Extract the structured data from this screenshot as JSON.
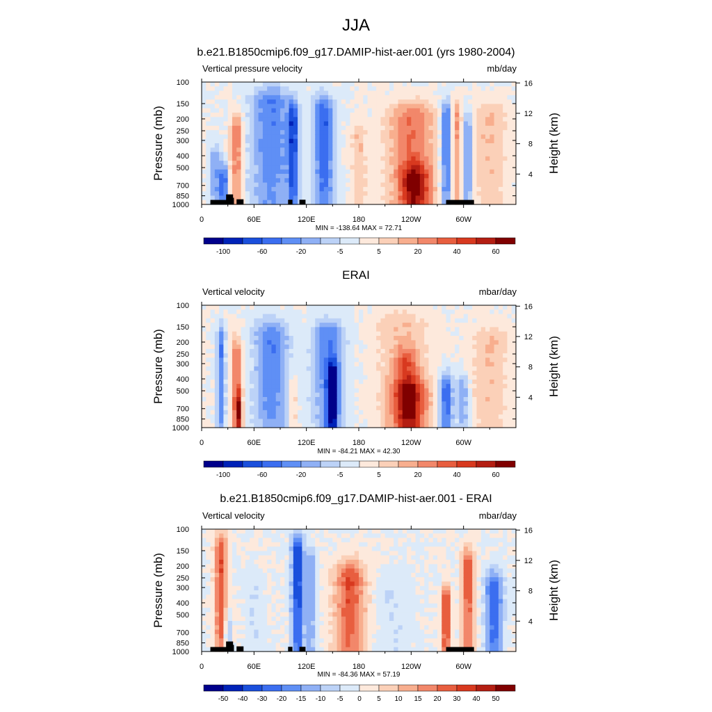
{
  "figure_title": "JJA",
  "chart_data": [
    {
      "type": "heatmap",
      "title": "b.e21.B1850cmip6.f09_g17.DAMIP-hist-aer.001 (yrs 1980-2004)",
      "left_label": "Vertical pressure velocity",
      "units": "mb/day",
      "xlabel": "",
      "ylabel": "Pressure (mb)",
      "y2label": "Height (km)",
      "x_ticks": [
        "0",
        "60E",
        "120E",
        "180",
        "120W",
        "60W"
      ],
      "y_ticks": [
        "100",
        "150",
        "200",
        "250",
        "300",
        "400",
        "500",
        "700",
        "850",
        "1000"
      ],
      "y2_ticks": [
        "4",
        "8",
        "12",
        "16"
      ],
      "stats": "MIN = -138.64  MAX =  72.71",
      "colorbar_labels": [
        "-100",
        "-60",
        "-20",
        "-5",
        "5",
        "20",
        "40",
        "60"
      ],
      "min": -138.64,
      "max": 72.71,
      "ylim": [
        1000,
        100
      ],
      "features": [
        {
          "lon": 15,
          "p_top": 450,
          "halfwidth": 6,
          "level": -3
        },
        {
          "lon": 25,
          "p_top": 650,
          "halfwidth": 5,
          "level": -5
        },
        {
          "lon": 40,
          "p_top": 250,
          "halfwidth": 7,
          "level": 4
        },
        {
          "lon": 80,
          "p_top": 150,
          "halfwidth": 24,
          "level": -4
        },
        {
          "lon": 105,
          "p_top": 200,
          "halfwidth": 6,
          "level": -5
        },
        {
          "lon": 140,
          "p_top": 180,
          "halfwidth": 12,
          "level": -5
        },
        {
          "lon": 180,
          "p_top": 300,
          "halfwidth": 8,
          "level": 2
        },
        {
          "lon": 240,
          "p_top": 200,
          "halfwidth": 28,
          "level": 4
        },
        {
          "lon": 245,
          "p_top": 650,
          "halfwidth": 16,
          "level": 5
        },
        {
          "lon": 280,
          "p_top": 200,
          "halfwidth": 6,
          "level": -5
        },
        {
          "lon": 292,
          "p_top": 200,
          "halfwidth": 5,
          "level": 3
        },
        {
          "lon": 305,
          "p_top": 250,
          "halfwidth": 5,
          "level": -4
        },
        {
          "lon": 330,
          "p_top": 200,
          "halfwidth": 20,
          "level": 2
        }
      ]
    },
    {
      "type": "heatmap",
      "title": "ERAI",
      "left_label": "Vertical velocity",
      "units": "mbar/day",
      "xlabel": "",
      "ylabel": "Pressure (mb)",
      "y2label": "Height (km)",
      "x_ticks": [
        "0",
        "60E",
        "120E",
        "180",
        "120W",
        "60W"
      ],
      "y_ticks": [
        "100",
        "150",
        "200",
        "250",
        "300",
        "400",
        "500",
        "700",
        "850",
        "1000"
      ],
      "y2_ticks": [
        "4",
        "8",
        "12",
        "16"
      ],
      "stats": "MIN = -84.21  MAX =  42.30",
      "colorbar_labels": [
        "-100",
        "-60",
        "-20",
        "-5",
        "5",
        "20",
        "40",
        "60"
      ],
      "min": -84.21,
      "max": 42.3,
      "ylim": [
        1000,
        100
      ],
      "features": [
        {
          "lon": 22,
          "p_top": 200,
          "halfwidth": 5,
          "level": -4
        },
        {
          "lon": 40,
          "p_top": 250,
          "halfwidth": 6,
          "level": 4
        },
        {
          "lon": 42,
          "p_top": 700,
          "halfwidth": 4,
          "level": 5
        },
        {
          "lon": 80,
          "p_top": 180,
          "halfwidth": 20,
          "level": -4
        },
        {
          "lon": 105,
          "p_top": 500,
          "halfwidth": 5,
          "level": 2
        },
        {
          "lon": 145,
          "p_top": 180,
          "halfwidth": 18,
          "level": -4
        },
        {
          "lon": 150,
          "p_top": 400,
          "halfwidth": 6,
          "level": -6
        },
        {
          "lon": 230,
          "p_top": 150,
          "halfwidth": 30,
          "level": 2
        },
        {
          "lon": 235,
          "p_top": 300,
          "halfwidth": 14,
          "level": 3
        },
        {
          "lon": 240,
          "p_top": 550,
          "halfwidth": 22,
          "level": 4
        },
        {
          "lon": 280,
          "p_top": 500,
          "halfwidth": 8,
          "level": -5
        },
        {
          "lon": 300,
          "p_top": 500,
          "halfwidth": 7,
          "level": -3
        },
        {
          "lon": 330,
          "p_top": 200,
          "halfwidth": 22,
          "level": 2
        }
      ]
    },
    {
      "type": "heatmap",
      "title": "b.e21.B1850cmip6.f09_g17.DAMIP-hist-aer.001 - ERAI",
      "left_label": "Vertical velocity",
      "units": "mbar/day",
      "xlabel": "",
      "ylabel": "Pressure (mb)",
      "y2label": "Height (km)",
      "x_ticks": [
        "0",
        "60E",
        "120E",
        "180",
        "120W",
        "60W"
      ],
      "y_ticks": [
        "100",
        "150",
        "200",
        "250",
        "300",
        "400",
        "500",
        "700",
        "850",
        "1000"
      ],
      "y2_ticks": [
        "4",
        "8",
        "12",
        "16"
      ],
      "stats": "MIN = -84.36  MAX =  57.19",
      "colorbar_labels": [
        "-50",
        "-40",
        "-30",
        "-20",
        "-15",
        "-10",
        "-5",
        "0",
        "5",
        "10",
        "15",
        "20",
        "30",
        "40",
        "50"
      ],
      "min": -84.36,
      "max": 57.19,
      "ylim": [
        1000,
        100
      ],
      "features": [
        {
          "lon": 22,
          "p_top": 150,
          "halfwidth": 7,
          "level": 5
        },
        {
          "lon": 30,
          "p_top": 700,
          "halfwidth": 3,
          "level": -4
        },
        {
          "lon": 60,
          "p_top": 300,
          "halfwidth": 10,
          "level": -1
        },
        {
          "lon": 110,
          "p_top": 150,
          "halfwidth": 7,
          "level": -6
        },
        {
          "lon": 125,
          "p_top": 200,
          "halfwidth": 6,
          "level": -3
        },
        {
          "lon": 170,
          "p_top": 250,
          "halfwidth": 18,
          "level": 5
        },
        {
          "lon": 220,
          "p_top": 300,
          "halfwidth": 20,
          "level": -1
        },
        {
          "lon": 280,
          "p_top": 400,
          "halfwidth": 5,
          "level": 6
        },
        {
          "lon": 305,
          "p_top": 200,
          "halfwidth": 7,
          "level": 5
        },
        {
          "lon": 335,
          "p_top": 300,
          "halfwidth": 10,
          "level": -5
        }
      ]
    }
  ],
  "colors": {
    "scale": [
      "#00008b",
      "#0022b8",
      "#1a4fdc",
      "#3b6ef0",
      "#5f8ff5",
      "#8fb0f5",
      "#bcd2f7",
      "#dceaf9",
      "#fde9dc",
      "#fbd0b8",
      "#f8ae8e",
      "#f2876a",
      "#e85e3f",
      "#d8391f",
      "#b41e12",
      "#800000"
    ],
    "topography": "#000000"
  }
}
